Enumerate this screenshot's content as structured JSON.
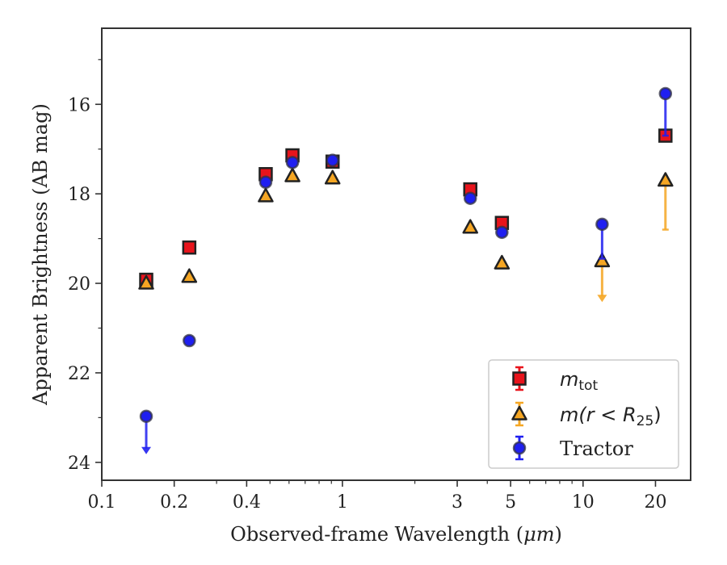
{
  "chart_data": {
    "type": "scatter",
    "xlabel_pre": "Observed-frame Wavelength (",
    "xlabel_unit": "μm",
    "xlabel_post": ")",
    "ylabel": "Apparent Brightness (AB mag)",
    "xscale": "log",
    "xlim": [
      0.1,
      28
    ],
    "ylim": [
      24.4,
      14.3
    ],
    "y_inverted": true,
    "grid": false,
    "legend_placement": "lower-right",
    "x_major_ticks": [
      {
        "value": 0.1,
        "label": "0.1"
      },
      {
        "value": 0.2,
        "label": "0.2"
      },
      {
        "value": 0.4,
        "label": "0.4"
      },
      {
        "value": 1,
        "label": "1"
      },
      {
        "value": 3,
        "label": "3"
      },
      {
        "value": 5,
        "label": "5"
      },
      {
        "value": 10,
        "label": "10"
      },
      {
        "value": 20,
        "label": "20"
      }
    ],
    "x_minor_ticks": [
      0.3,
      0.5,
      0.6,
      0.7,
      0.8,
      0.9,
      2,
      4,
      6,
      7,
      8,
      9,
      30
    ],
    "y_major_ticks": [
      {
        "value": 16,
        "label": "16"
      },
      {
        "value": 18,
        "label": "18"
      },
      {
        "value": 20,
        "label": "20"
      },
      {
        "value": 22,
        "label": "22"
      },
      {
        "value": 24,
        "label": "24"
      }
    ],
    "y_minor_ticks": [
      15,
      17,
      19,
      21,
      23
    ],
    "series": [
      {
        "key": "mtot",
        "legend_main": "m",
        "legend_sub": "tot",
        "legend_suffix": "",
        "marker": "square",
        "color": "#e8141c",
        "edge_color": "#222222",
        "points": [
          {
            "x": 0.153,
            "y": 19.92
          },
          {
            "x": 0.231,
            "y": 19.2
          },
          {
            "x": 0.48,
            "y": 17.56
          },
          {
            "x": 0.62,
            "y": 17.14
          },
          {
            "x": 0.91,
            "y": 17.28
          },
          {
            "x": 3.4,
            "y": 17.9
          },
          {
            "x": 4.6,
            "y": 18.65
          },
          {
            "x": 22,
            "y": 16.7
          }
        ]
      },
      {
        "key": "m_r25",
        "legend_main": "m(r < R",
        "legend_sub": "25",
        "legend_suffix": ")",
        "marker": "triangle",
        "color": "#f5a623",
        "edge_color": "#222222",
        "points": [
          {
            "x": 0.153,
            "y": 20.0
          },
          {
            "x": 0.231,
            "y": 19.85
          },
          {
            "x": 0.48,
            "y": 18.05
          },
          {
            "x": 0.62,
            "y": 17.6
          },
          {
            "x": 0.91,
            "y": 17.65
          },
          {
            "x": 3.4,
            "y": 18.75
          },
          {
            "x": 4.6,
            "y": 19.55
          },
          {
            "x": 12,
            "y": 19.5,
            "upper_limit_to": 20.4
          },
          {
            "x": 22,
            "y": 17.7,
            "err_to": 18.8
          }
        ]
      },
      {
        "key": "tractor",
        "legend_main": "Tractor",
        "legend_sub": "",
        "legend_suffix": "",
        "marker": "circle",
        "color": "#1f1ff0",
        "edge_color": "#333344",
        "points": [
          {
            "x": 0.153,
            "y": 22.97,
            "upper_limit_to": 23.8
          },
          {
            "x": 0.231,
            "y": 21.28
          },
          {
            "x": 0.48,
            "y": 17.74
          },
          {
            "x": 0.62,
            "y": 17.3
          },
          {
            "x": 0.91,
            "y": 17.25
          },
          {
            "x": 3.4,
            "y": 18.1
          },
          {
            "x": 4.6,
            "y": 18.86
          },
          {
            "x": 12,
            "y": 18.68,
            "err_to": 19.45
          },
          {
            "x": 22,
            "y": 15.76,
            "err_to": 16.7
          }
        ]
      }
    ]
  }
}
